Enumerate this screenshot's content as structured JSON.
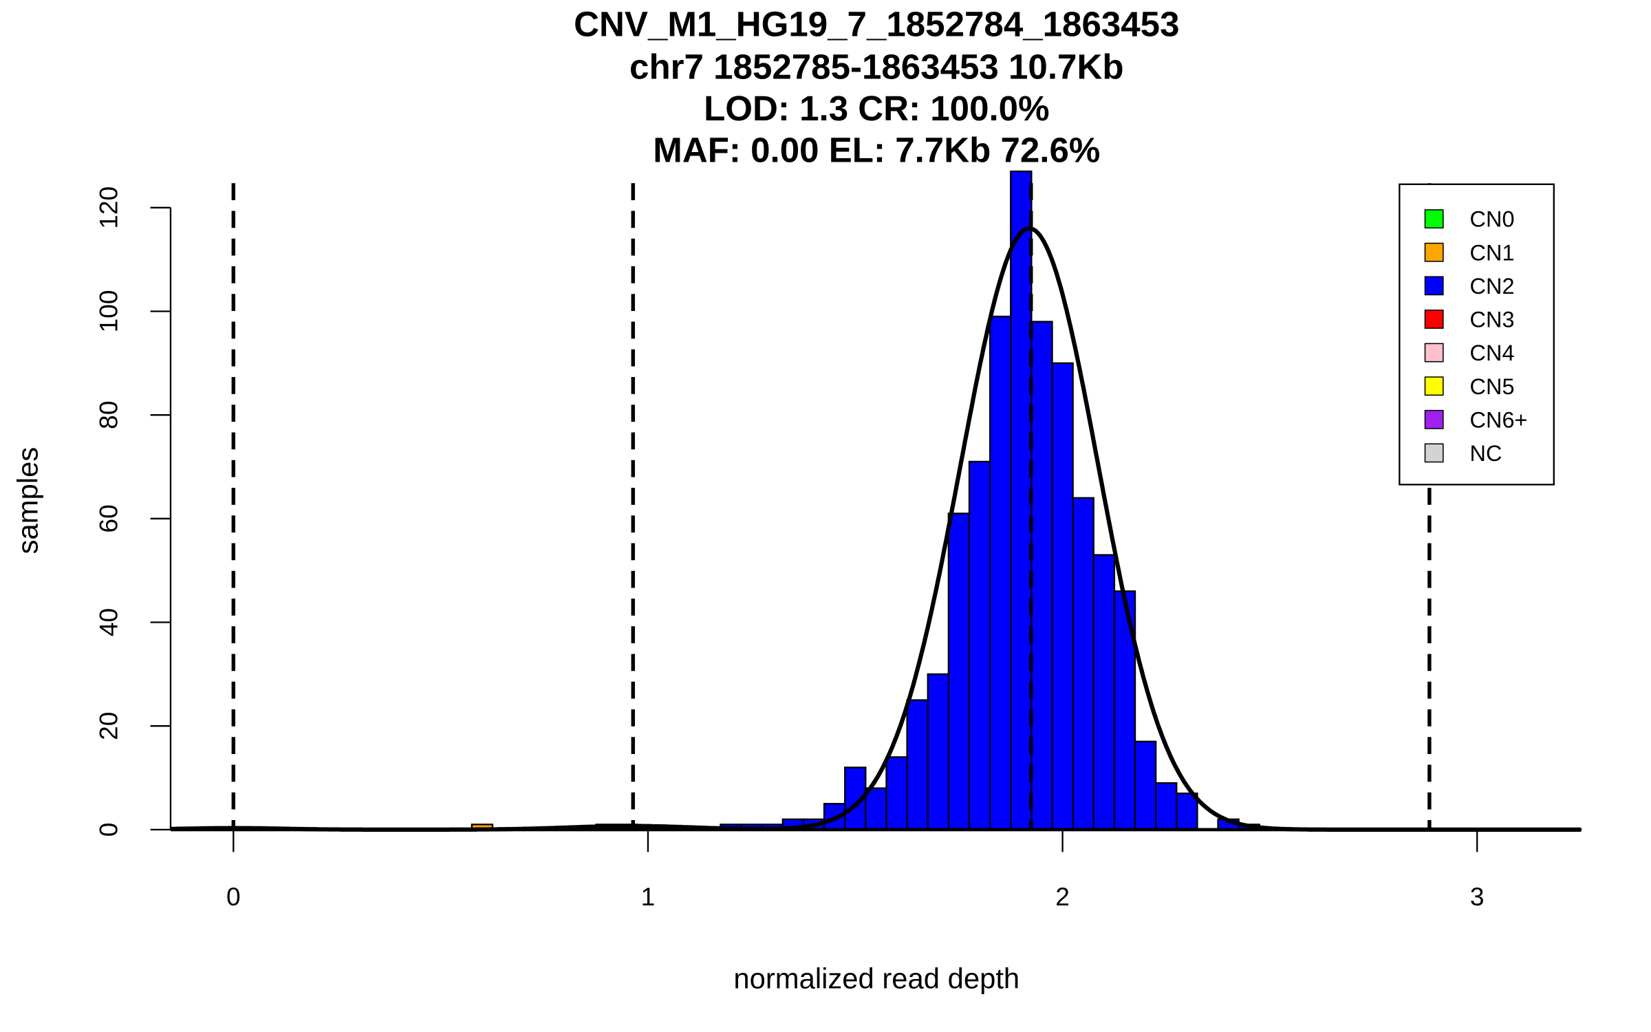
{
  "chart_data": {
    "type": "bar",
    "title_lines": [
      "CNV_M1_HG19_7_1852784_1863453",
      "chr7 1852785-1863453 10.7Kb",
      "LOD: 1.3 CR: 100.0%",
      "MAF: 0.00 EL: 7.7Kb 72.6%"
    ],
    "xlabel": "normalized read depth",
    "ylabel": "samples",
    "xlim": [
      -0.15,
      3.25
    ],
    "ylim": [
      0,
      127
    ],
    "xticks": [
      "0",
      "1",
      "2",
      "3"
    ],
    "yticks": [
      "0",
      "20",
      "40",
      "60",
      "80",
      "100",
      "120"
    ],
    "bin_width": 0.05,
    "bins": [
      {
        "start": 0.575,
        "count": 1,
        "cn": "CN1"
      },
      {
        "start": 0.875,
        "count": 1,
        "cn": "CN2"
      },
      {
        "start": 0.925,
        "count": 1,
        "cn": "CN2"
      },
      {
        "start": 1.175,
        "count": 1,
        "cn": "CN2"
      },
      {
        "start": 1.225,
        "count": 1,
        "cn": "CN2"
      },
      {
        "start": 1.275,
        "count": 1,
        "cn": "CN2"
      },
      {
        "start": 1.325,
        "count": 2,
        "cn": "CN2"
      },
      {
        "start": 1.375,
        "count": 2,
        "cn": "CN2"
      },
      {
        "start": 1.425,
        "count": 5,
        "cn": "CN2"
      },
      {
        "start": 1.475,
        "count": 12,
        "cn": "CN2"
      },
      {
        "start": 1.525,
        "count": 8,
        "cn": "CN2"
      },
      {
        "start": 1.575,
        "count": 14,
        "cn": "CN2"
      },
      {
        "start": 1.625,
        "count": 25,
        "cn": "CN2"
      },
      {
        "start": 1.675,
        "count": 30,
        "cn": "CN2"
      },
      {
        "start": 1.725,
        "count": 61,
        "cn": "CN2"
      },
      {
        "start": 1.775,
        "count": 71,
        "cn": "CN2"
      },
      {
        "start": 1.825,
        "count": 99,
        "cn": "CN2"
      },
      {
        "start": 1.875,
        "count": 127,
        "cn": "CN2"
      },
      {
        "start": 1.925,
        "count": 98,
        "cn": "CN2"
      },
      {
        "start": 1.975,
        "count": 90,
        "cn": "CN2"
      },
      {
        "start": 2.025,
        "count": 64,
        "cn": "CN2"
      },
      {
        "start": 2.075,
        "count": 53,
        "cn": "CN2"
      },
      {
        "start": 2.125,
        "count": 46,
        "cn": "CN2"
      },
      {
        "start": 2.175,
        "count": 17,
        "cn": "CN2"
      },
      {
        "start": 2.225,
        "count": 9,
        "cn": "CN2"
      },
      {
        "start": 2.275,
        "count": 7,
        "cn": "CN2"
      },
      {
        "start": 2.375,
        "count": 2,
        "cn": "CN2"
      },
      {
        "start": 2.425,
        "count": 1,
        "cn": "CN2"
      }
    ],
    "fit_components": [
      {
        "mean": 0.0,
        "sd": 0.12,
        "peak": 0.3
      },
      {
        "mean": 0.96,
        "sd": 0.15,
        "peak": 0.7
      },
      {
        "mean": 1.92,
        "sd": 0.166,
        "peak": 116
      }
    ],
    "dashed_lines_x": [
      0.0,
      0.964,
      1.924,
      2.885
    ],
    "legend": {
      "placement": "top-right",
      "items": [
        {
          "label": "CN0",
          "color": "#00ff00"
        },
        {
          "label": "CN1",
          "color": "#ffa500"
        },
        {
          "label": "CN2",
          "color": "#0000ff"
        },
        {
          "label": "CN3",
          "color": "#ff0000"
        },
        {
          "label": "CN4",
          "color": "#ffc0cb"
        },
        {
          "label": "CN5",
          "color": "#ffff00"
        },
        {
          "label": "CN6+",
          "color": "#a020f0"
        },
        {
          "label": "NC",
          "color": "#d3d3d3"
        }
      ]
    }
  }
}
